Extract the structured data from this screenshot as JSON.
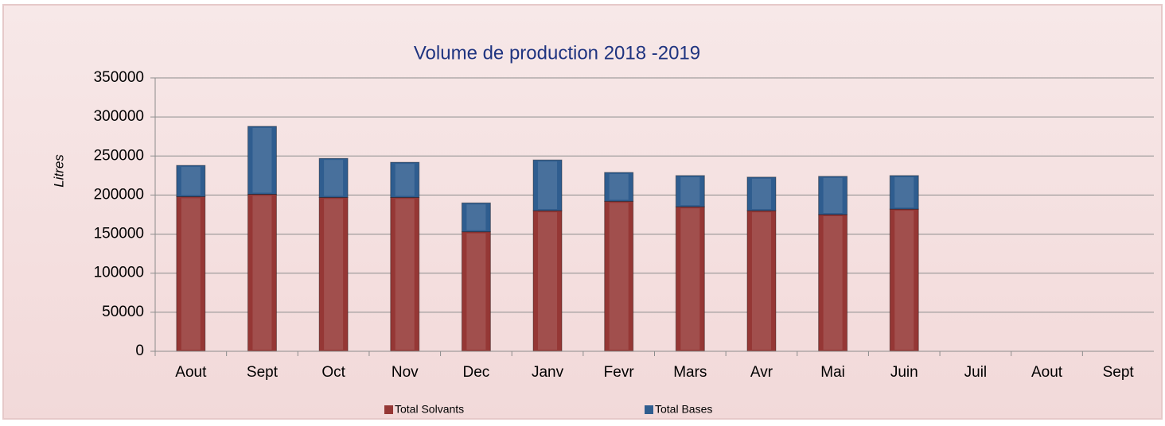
{
  "chart_data": {
    "type": "stacked_bar",
    "title": "Volume de production 2018 -2019",
    "y_label": "Litres",
    "categories": [
      "Aout",
      "Sept",
      "Oct",
      "Nov",
      "Dec",
      "Janv",
      "Fevr",
      "Mars",
      "Avr",
      "Mai",
      "Juin",
      "Juil",
      "Aout",
      "Sept"
    ],
    "series": [
      {
        "name": "Total Solvants",
        "color": "#953735",
        "values": [
          198000,
          201000,
          197000,
          197000,
          153000,
          180000,
          192000,
          185000,
          180000,
          175000,
          182000,
          null,
          null,
          null
        ]
      },
      {
        "name": "Total Bases",
        "color": "#2f5d8f",
        "values": [
          40000,
          87000,
          50000,
          45000,
          37000,
          65000,
          37000,
          40000,
          43000,
          49000,
          43000,
          null,
          null,
          null
        ]
      }
    ],
    "ylim": [
      0,
      350000
    ],
    "yticks": [
      0,
      50000,
      100000,
      150000,
      200000,
      250000,
      300000,
      350000
    ],
    "grid": true
  }
}
